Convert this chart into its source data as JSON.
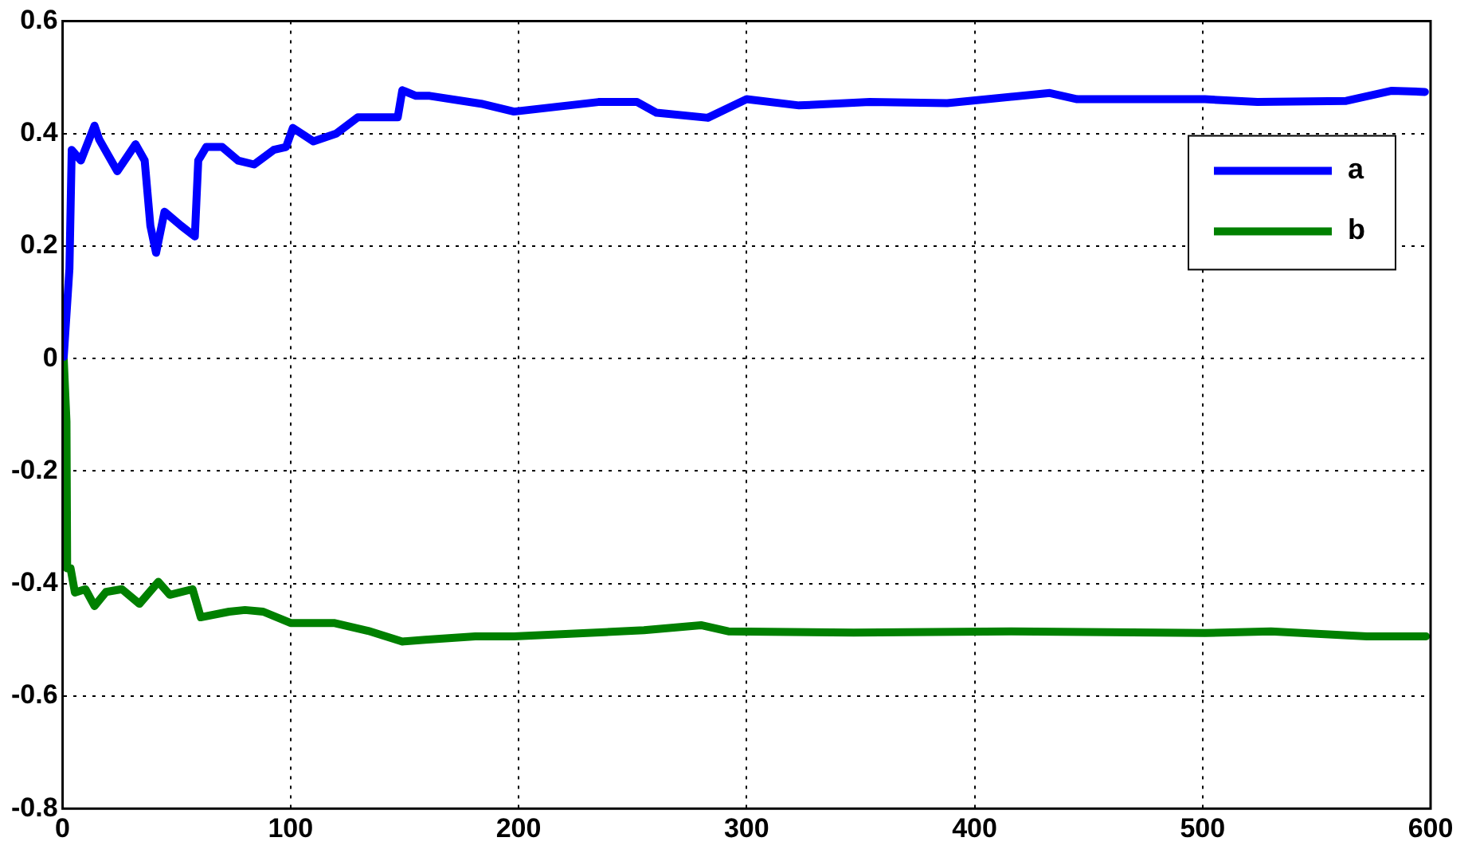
{
  "chart_data": {
    "type": "line",
    "xlim": [
      0,
      600
    ],
    "xticks": [
      0,
      100,
      200,
      300,
      400,
      500,
      600
    ],
    "ylim": [
      -0.8,
      0.6
    ],
    "yticks": [
      -0.8,
      -0.6,
      -0.4,
      -0.2,
      0,
      0.2,
      0.4,
      0.6
    ],
    "grid": true,
    "legend": "top right",
    "line_style": "solid",
    "marker": "none",
    "series": [
      {
        "name": "a",
        "color": "#0000ff",
        "x": [
          0.5,
          3,
          4,
          8,
          14,
          16,
          24,
          32,
          36,
          38.5,
          41,
          44.7,
          52,
          58,
          59.5,
          63,
          70,
          77,
          84,
          92.6,
          98,
          101,
          110,
          120,
          129.5,
          147,
          149,
          155,
          161,
          183.5,
          198,
          235,
          252,
          260.5,
          283,
          300,
          323,
          354,
          388,
          433,
          445,
          501,
          524,
          563,
          583,
          597.5
        ],
        "values": [
          0.003,
          0.16,
          0.371,
          0.352,
          0.414,
          0.39,
          0.333,
          0.381,
          0.352,
          0.236,
          0.188,
          0.261,
          0.236,
          0.217,
          0.352,
          0.376,
          0.376,
          0.352,
          0.345,
          0.371,
          0.376,
          0.41,
          0.386,
          0.4,
          0.429,
          0.429,
          0.477,
          0.467,
          0.467,
          0.453,
          0.439,
          0.456,
          0.456,
          0.437,
          0.428,
          0.461,
          0.45,
          0.456,
          0.454,
          0.472,
          0.461,
          0.461,
          0.456,
          0.458,
          0.476,
          0.474
        ]
      },
      {
        "name": "b",
        "color": "#008000",
        "x": [
          0.5,
          1.7,
          2,
          3.5,
          5.4,
          10,
          14,
          19,
          26,
          33.7,
          42,
          47,
          57,
          60.6,
          73,
          80,
          88,
          100,
          119,
          134,
          149,
          159,
          181,
          198,
          255,
          280,
          292,
          347,
          416,
          501,
          530,
          572,
          598
        ],
        "values": [
          0,
          -0.112,
          -0.373,
          -0.373,
          -0.416,
          -0.41,
          -0.44,
          -0.415,
          -0.41,
          -0.436,
          -0.397,
          -0.42,
          -0.41,
          -0.46,
          -0.45,
          -0.447,
          -0.45,
          -0.47,
          -0.47,
          -0.484,
          -0.503,
          -0.5,
          -0.494,
          -0.494,
          -0.483,
          -0.474,
          -0.485,
          -0.487,
          -0.485,
          -0.488,
          -0.485,
          -0.494,
          -0.494
        ]
      }
    ]
  }
}
